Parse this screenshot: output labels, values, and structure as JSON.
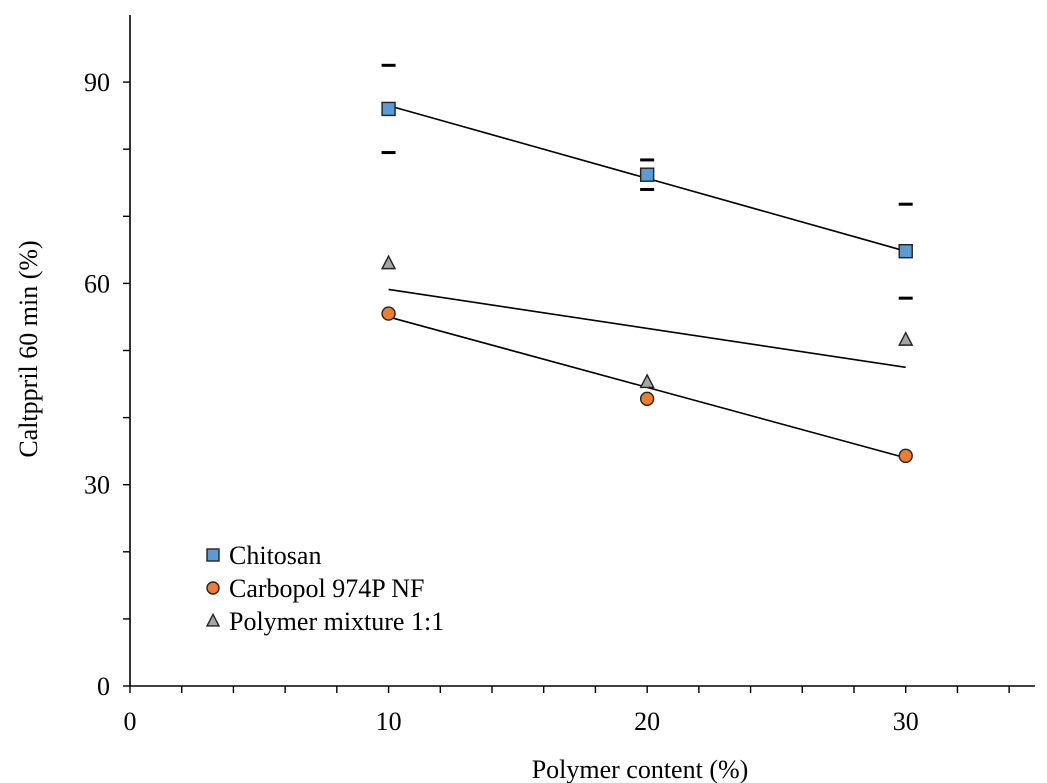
{
  "chart_data": {
    "type": "scatter",
    "title": "",
    "xlabel": "Polymer content (%)",
    "ylabel": "Caltppril 60 min (%)",
    "xlim": [
      0,
      35
    ],
    "ylim": [
      0,
      100
    ],
    "xticks": [
      0,
      10,
      20,
      30
    ],
    "xticks_minor": [
      2,
      4,
      6,
      8,
      12,
      14,
      16,
      18,
      22,
      24,
      26,
      28,
      32,
      34
    ],
    "yticks": [
      0,
      30,
      60,
      90
    ],
    "yticks_minor": [
      10,
      20,
      40,
      50,
      70,
      80
    ],
    "x_tick_labels": [
      "0",
      "10",
      "20",
      "30"
    ],
    "y_tick_labels": [
      "0",
      "30",
      "60",
      "90"
    ],
    "grid": false,
    "legend_position": "bottom-left",
    "series": [
      {
        "name": "Chitosan",
        "marker": "square",
        "color": "#5b9bd5",
        "x": [
          10,
          20,
          30
        ],
        "y": [
          86,
          76.2,
          64.8
        ],
        "error": [
          6.5,
          2.2,
          7
        ],
        "trendline": [
          [
            10,
            86.5
          ],
          [
            30,
            64.8
          ]
        ]
      },
      {
        "name": "Carbopol 974P NF",
        "marker": "circle",
        "color": "#ed7d31",
        "x": [
          10,
          20,
          30
        ],
        "y": [
          55.5,
          42.8,
          34.3
        ],
        "error": null,
        "trendline": [
          [
            10,
            55
          ],
          [
            30,
            34
          ]
        ]
      },
      {
        "name": "Polymer mixture 1:1",
        "marker": "triangle",
        "color": "#a5a5a5",
        "x": [
          10,
          20,
          30
        ],
        "y": [
          63,
          45.3,
          51.6
        ],
        "error": null,
        "trendline": [
          [
            10,
            59.1
          ],
          [
            30,
            47.5
          ]
        ]
      }
    ]
  }
}
